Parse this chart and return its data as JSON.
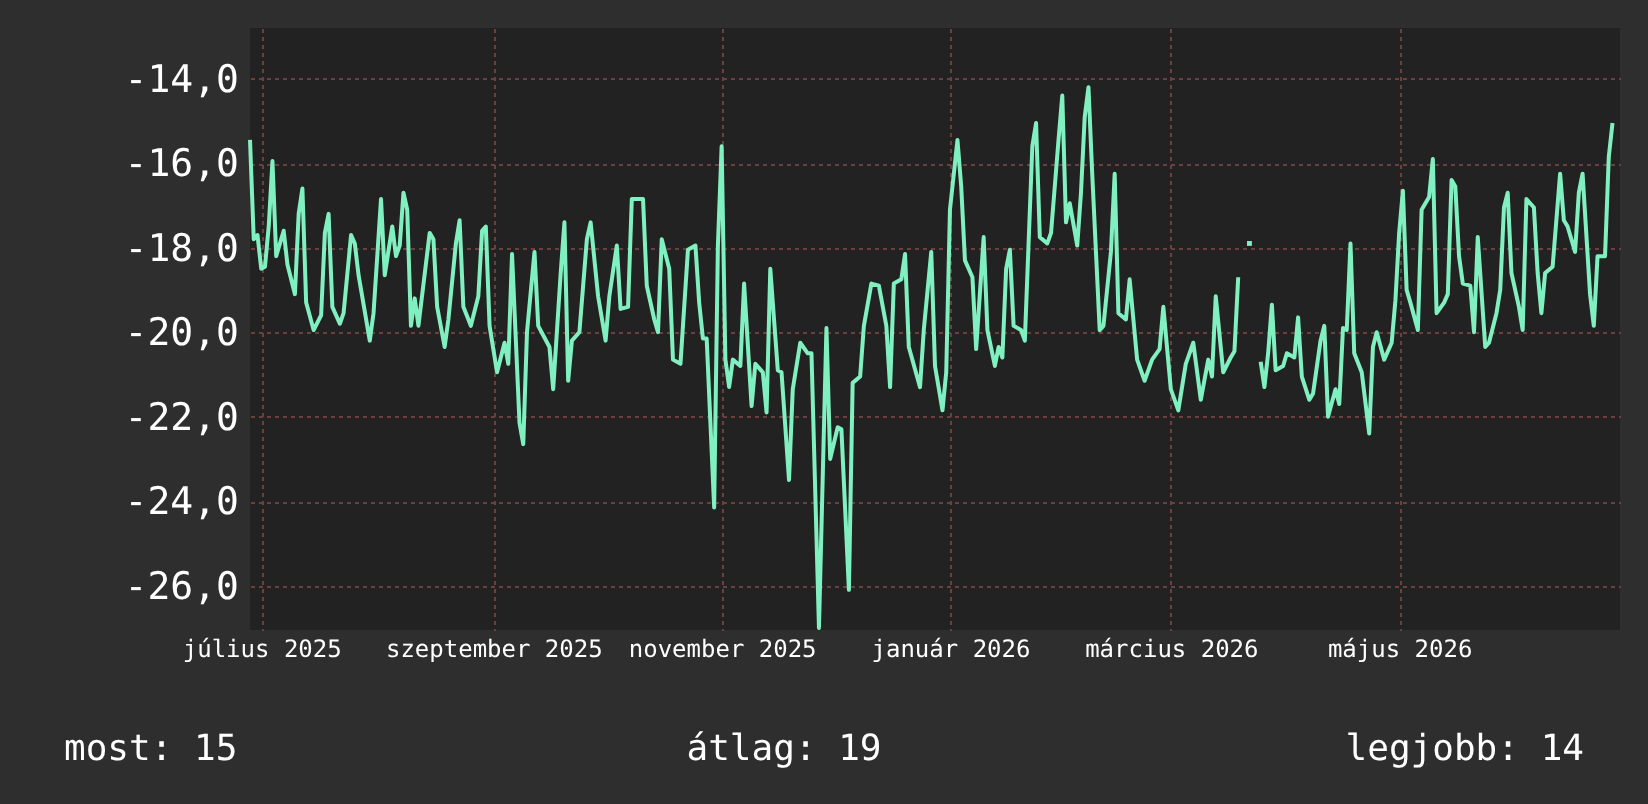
{
  "chart_data": {
    "type": "line",
    "grid": true,
    "x": [
      "2025-07-13",
      "2025-07-14",
      "2025-07-15",
      "2025-07-16",
      "2025-07-17",
      "2025-07-18",
      "2025-07-19",
      "2025-07-20",
      "2025-07-22",
      "2025-07-23",
      "2025-07-25",
      "2025-07-26",
      "2025-07-27",
      "2025-07-28",
      "2025-07-30",
      "2025-08-01",
      "2025-08-02",
      "2025-08-03",
      "2025-08-04",
      "2025-08-06",
      "2025-08-07",
      "2025-08-09",
      "2025-08-10",
      "2025-08-11",
      "2025-08-14",
      "2025-08-15",
      "2025-08-17",
      "2025-08-18",
      "2025-08-20",
      "2025-08-21",
      "2025-08-22",
      "2025-08-23",
      "2025-08-24",
      "2025-08-25",
      "2025-08-26",
      "2025-08-27",
      "2025-08-30",
      "2025-08-31",
      "2025-09-01",
      "2025-09-03",
      "2025-09-04",
      "2025-09-06",
      "2025-09-07",
      "2025-09-08",
      "2025-09-10",
      "2025-09-12",
      "2025-09-13",
      "2025-09-14",
      "2025-09-15",
      "2025-09-17",
      "2025-09-19",
      "2025-09-20",
      "2025-09-21",
      "2025-09-23",
      "2025-09-24",
      "2025-09-25",
      "2025-09-27",
      "2025-09-28",
      "2025-10-01",
      "2025-10-02",
      "2025-10-04",
      "2025-10-05",
      "2025-10-06",
      "2025-10-07",
      "2025-10-09",
      "2025-10-11",
      "2025-10-12",
      "2025-10-14",
      "2025-10-16",
      "2025-10-17",
      "2025-10-19",
      "2025-10-20",
      "2025-10-22",
      "2025-10-23",
      "2025-10-26",
      "2025-10-27",
      "2025-10-29",
      "2025-10-30",
      "2025-10-31",
      "2025-11-02",
      "2025-11-03",
      "2025-11-05",
      "2025-11-07",
      "2025-11-09",
      "2025-11-10",
      "2025-11-11",
      "2025-11-12",
      "2025-11-14",
      "2025-11-15",
      "2025-11-16",
      "2025-11-17",
      "2025-11-18",
      "2025-11-19",
      "2025-11-21",
      "2025-11-22",
      "2025-11-24",
      "2025-11-25",
      "2025-11-27",
      "2025-11-28",
      "2025-11-29",
      "2025-12-01",
      "2025-12-02",
      "2025-12-04",
      "2025-12-05",
      "2025-12-07",
      "2025-12-09",
      "2025-12-10",
      "2025-12-12",
      "2025-12-14",
      "2025-12-15",
      "2025-12-17",
      "2025-12-18",
      "2025-12-20",
      "2025-12-21",
      "2025-12-23",
      "2025-12-24",
      "2025-12-26",
      "2025-12-28",
      "2025-12-30",
      "2025-12-31",
      "2026-01-01",
      "2026-01-03",
      "2026-01-04",
      "2026-01-05",
      "2026-01-08",
      "2026-01-09",
      "2026-01-11",
      "2026-01-12",
      "2026-01-14",
      "2026-01-15",
      "2026-01-16",
      "2026-01-18",
      "2026-01-19",
      "2026-01-20",
      "2026-01-22",
      "2026-01-23",
      "2026-01-25",
      "2026-01-26",
      "2026-01-28",
      "2026-01-29",
      "2026-01-30",
      "2026-01-31",
      "2026-02-01",
      "2026-02-02",
      "2026-02-04",
      "2026-02-05",
      "2026-02-07",
      "2026-02-08",
      "2026-02-09",
      "2026-02-11",
      "2026-02-12",
      "2026-02-14",
      "2026-02-15",
      "2026-02-16",
      "2026-02-17",
      "2026-02-19",
      "2026-02-20",
      "2026-02-21",
      "2026-02-22",
      "2026-02-23",
      "2026-02-25",
      "2026-02-26",
      "2026-02-28",
      "2026-03-01",
      "2026-03-02",
      "2026-03-04",
      "2026-03-05",
      "2026-03-07",
      "2026-03-09",
      "2026-03-11",
      "2026-03-13",
      "2026-03-14",
      "2026-03-16",
      "2026-03-18",
      "2026-03-20",
      "2026-03-22",
      "2026-03-24",
      "2026-03-26",
      "2026-03-27",
      "2026-03-28",
      "2026-03-30",
      "2026-04-01",
      "2026-04-02",
      "2026-04-03",
      "2026-04-04",
      "2026-04-05",
      "2026-04-06",
      "2026-04-07",
      "2026-04-08",
      "2026-04-09",
      "2026-04-10",
      "2026-04-11",
      "2026-04-12",
      "2026-04-13",
      "2026-04-15",
      "2026-04-16",
      "2026-04-18",
      "2026-04-19",
      "2026-04-20",
      "2026-04-22",
      "2026-04-23",
      "2026-04-25",
      "2026-04-26",
      "2026-04-27",
      "2026-04-29",
      "2026-04-30",
      "2026-05-01",
      "2026-05-02",
      "2026-05-03",
      "2026-05-04",
      "2026-05-06",
      "2026-05-08",
      "2026-05-09",
      "2026-05-10",
      "2026-05-12",
      "2026-05-14",
      "2026-05-15",
      "2026-05-16",
      "2026-05-17",
      "2026-05-18",
      "2026-05-19",
      "2026-05-21",
      "2026-05-22",
      "2026-05-24",
      "2026-05-25",
      "2026-05-26",
      "2026-05-28",
      "2026-05-29",
      "2026-05-30",
      "2026-05-31",
      "2026-06-01",
      "2026-06-02",
      "2026-06-04",
      "2026-06-05",
      "2026-06-06",
      "2026-06-08",
      "2026-06-09",
      "2026-06-11",
      "2026-06-12",
      "2026-06-13",
      "2026-06-14",
      "2026-06-15",
      "2026-06-17",
      "2026-06-18",
      "2026-06-19",
      "2026-06-21",
      "2026-06-22",
      "2026-06-23",
      "2026-06-24",
      "2026-06-26",
      "2026-06-28",
      "2026-06-29",
      "2026-06-30",
      "2026-07-02",
      "2026-07-03",
      "2026-07-04",
      "2026-07-06",
      "2026-07-07",
      "2026-07-08",
      "2026-07-10",
      "2026-07-11",
      "2026-07-12"
    ],
    "series": [
      {
        "color": "#80f0c0",
        "values": [
          -15.45,
          -17.8,
          -17.7,
          -18.5,
          -18.45,
          -17.5,
          -15.95,
          -18.2,
          -17.6,
          -18.4,
          -19.1,
          -17.2,
          -16.6,
          -19.3,
          -19.95,
          -19.6,
          -17.65,
          -17.2,
          -19.4,
          -19.8,
          -19.55,
          -17.7,
          -17.9,
          -18.65,
          -20.2,
          -19.55,
          -16.85,
          -18.65,
          -17.5,
          -18.2,
          -17.95,
          -16.7,
          -17.1,
          -19.85,
          -19.2,
          -19.85,
          -17.65,
          -17.8,
          -19.4,
          -20.35,
          -19.7,
          -17.9,
          -17.35,
          -19.4,
          -19.85,
          -19.15,
          -17.6,
          -17.5,
          -19.85,
          -20.95,
          -20.25,
          -20.75,
          -18.15,
          -22.15,
          -22.65,
          -20.0,
          -18.1,
          -19.85,
          -20.35,
          -21.35,
          -18.6,
          -17.4,
          -21.15,
          -20.2,
          -20.0,
          -17.8,
          -17.4,
          -19.15,
          -20.2,
          -19.15,
          -17.95,
          -19.45,
          -19.4,
          -16.85,
          -16.85,
          -18.9,
          -19.7,
          -20.0,
          -17.8,
          -18.5,
          -20.65,
          -20.75,
          -18.05,
          -17.95,
          -19.3,
          -20.15,
          -20.15,
          -24.15,
          -17.95,
          -15.6,
          -20.65,
          -21.3,
          -20.65,
          -20.8,
          -18.85,
          -21.75,
          -20.75,
          -20.95,
          -21.9,
          -18.5,
          -20.9,
          -20.95,
          -23.5,
          -21.35,
          -20.25,
          -20.5,
          -20.5,
          -27.0,
          -19.9,
          -23.0,
          -22.25,
          -22.3,
          -26.1,
          -21.2,
          -21.05,
          -19.85,
          -18.85,
          -18.9,
          -19.85,
          -21.3,
          -18.85,
          -18.75,
          -18.15,
          -20.35,
          -21.3,
          -19.95,
          -18.1,
          -20.8,
          -21.85,
          -20.95,
          -17.1,
          -15.45,
          -16.55,
          -18.3,
          -18.7,
          -20.4,
          -17.75,
          -19.95,
          -20.8,
          -20.35,
          -20.6,
          -18.5,
          -18.05,
          -19.85,
          -19.95,
          -20.2,
          -15.6,
          -15.05,
          -17.75,
          -17.9,
          -17.65,
          -15.45,
          -14.4,
          -17.4,
          -16.95,
          -17.95,
          -16.7,
          -14.9,
          -14.2,
          -16.25,
          -19.95,
          -19.85,
          -18.1,
          -16.25,
          -19.55,
          -19.7,
          -18.75,
          -20.65,
          -21.15,
          -20.65,
          -20.4,
          -19.4,
          -21.35,
          -21.85,
          -20.75,
          -20.25,
          -21.6,
          -20.65,
          -21.05,
          -19.15,
          -20.95,
          -20.6,
          -20.45,
          -18.7,
          null,
          null,
          null,
          null,
          null,
          -20.7,
          -21.3,
          -20.5,
          -19.35,
          -20.9,
          -20.8,
          -20.5,
          -20.6,
          -19.65,
          -21.05,
          -21.6,
          -21.45,
          -20.2,
          -19.85,
          -22.0,
          -21.35,
          -21.7,
          -19.9,
          -19.95,
          -17.9,
          -20.5,
          -20.95,
          -22.4,
          -20.35,
          -20.0,
          -20.65,
          -20.25,
          -19.25,
          -17.65,
          -16.65,
          -19.0,
          -19.3,
          -19.95,
          -17.1,
          -16.8,
          -15.9,
          -19.55,
          -19.3,
          -19.1,
          -16.4,
          -16.55,
          -18.2,
          -18.85,
          -18.9,
          -20.0,
          -17.75,
          -20.35,
          -20.25,
          -19.55,
          -19.0,
          -17.05,
          -16.7,
          -18.6,
          -19.4,
          -19.95,
          -16.85,
          -17.05,
          -18.6,
          -19.55,
          -18.6,
          -18.45,
          -16.25,
          -17.35,
          -17.5,
          -18.1,
          -16.7,
          -16.25,
          -19.1,
          -19.85,
          -18.2,
          -18.2,
          -15.85,
          -15.05
        ]
      },
      {
        "type": "scatter",
        "marker": "square",
        "color": "#80f0c0",
        "x": [
          "2026-04-06"
        ],
        "values": [
          -17.9
        ]
      }
    ],
    "xlim": [
      "2025-07-13",
      "2026-07-14"
    ],
    "xticks": [
      {
        "value": "2025-07-16",
        "label": "július 2025"
      },
      {
        "value": "2025-09-16",
        "label": "szeptember 2025"
      },
      {
        "value": "2025-11-16",
        "label": "november 2025"
      },
      {
        "value": "2026-01-16",
        "label": "január 2026"
      },
      {
        "value": "2026-03-16",
        "label": "március 2026"
      },
      {
        "value": "2026-05-16",
        "label": "május 2026"
      }
    ],
    "ylim": [
      -27.05,
      -12.8
    ],
    "yticks": [
      {
        "value": -14,
        "label": "-14,0"
      },
      {
        "value": -16,
        "label": "-16,0"
      },
      {
        "value": -18,
        "label": "-18,0"
      },
      {
        "value": -20,
        "label": "-20,0"
      },
      {
        "value": -22,
        "label": "-22,0"
      },
      {
        "value": -24,
        "label": "-24,0"
      },
      {
        "value": -26,
        "label": "-26,0"
      }
    ],
    "annotations": [
      "most: 15",
      "átlag: 19",
      "legjobb: 14"
    ]
  }
}
